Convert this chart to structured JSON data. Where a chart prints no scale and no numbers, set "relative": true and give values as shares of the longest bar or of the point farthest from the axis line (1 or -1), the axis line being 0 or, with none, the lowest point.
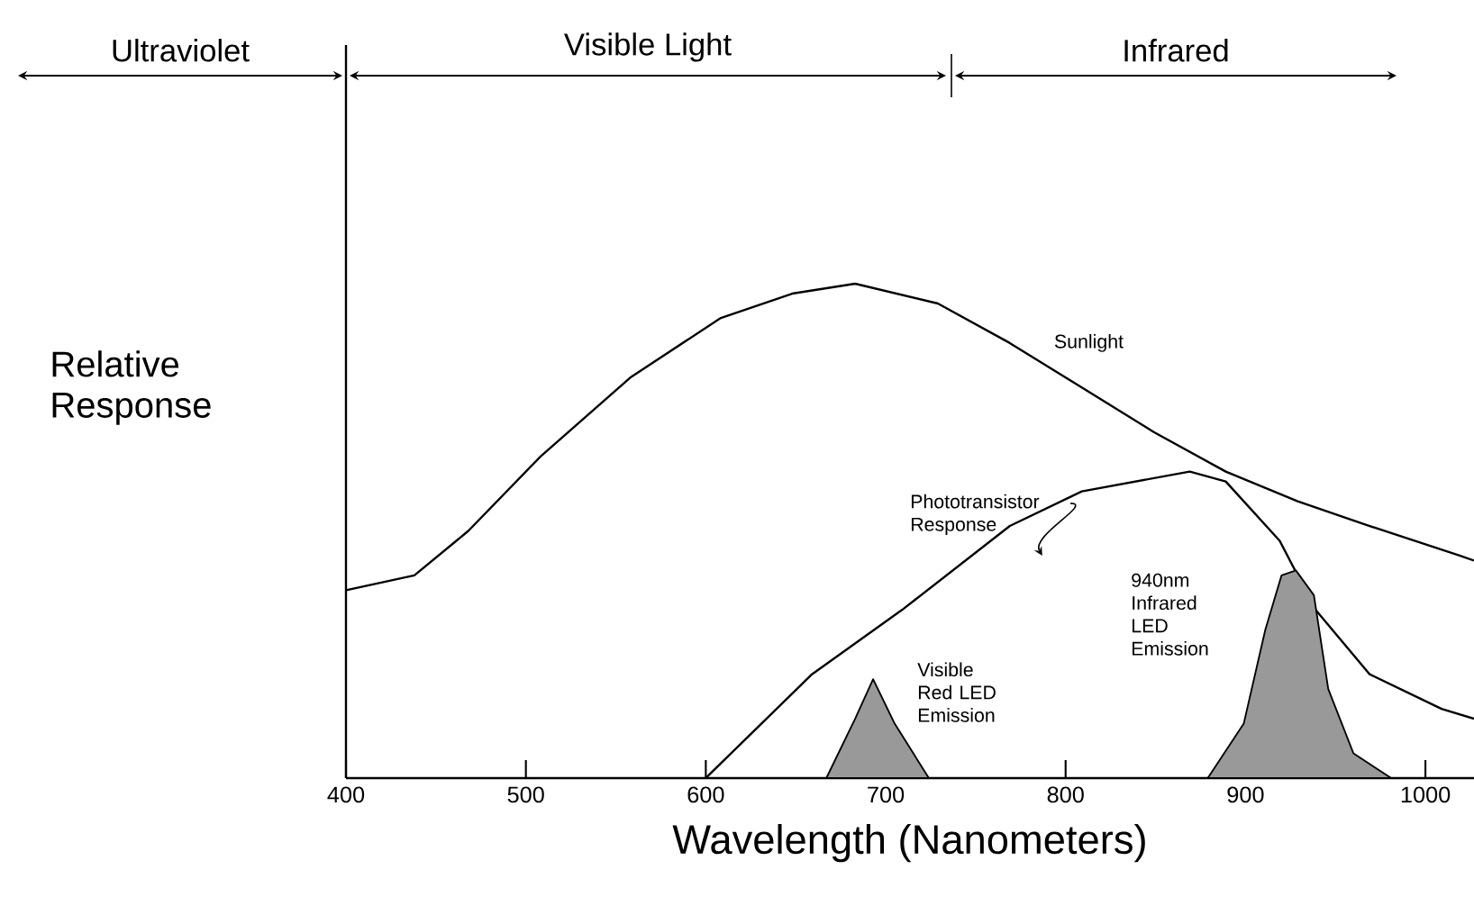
{
  "chart_data": {
    "type": "line",
    "relative": true,
    "xlabel": "Wavelength (Nanometers)",
    "ylabel": "Relative Response",
    "xlim": [
      400,
      1027
    ],
    "xticks": [
      400,
      500,
      600,
      700,
      800,
      900,
      1000
    ],
    "grid": false,
    "annotations": [
      "Ultraviolet",
      "Visible Light",
      "Infrared"
    ],
    "series": [
      {
        "name": "Sunlight",
        "color": "#000000",
        "x": [
          400,
          438,
          468,
          508,
          558,
          608,
          648,
          683,
          729,
          769,
          809,
          849,
          889,
          929,
          969,
          1019,
          1027
        ],
        "values": [
          0.38,
          0.41,
          0.5,
          0.65,
          0.81,
          0.93,
          0.98,
          1,
          0.96,
          0.88,
          0.79,
          0.7,
          0.62,
          0.56,
          0.51,
          0.45,
          0.44
        ]
      },
      {
        "name": "Phototransistor Response",
        "color": "#000000",
        "x": [
          600,
          659,
          709,
          769,
          809,
          869,
          889,
          919,
          939,
          969,
          1009,
          1027
        ],
        "values": [
          0,
          0.21,
          0.34,
          0.51,
          0.58,
          0.62,
          0.6,
          0.48,
          0.34,
          0.21,
          0.14,
          0.12
        ]
      },
      {
        "name": "Visible Red LED Emission",
        "type": "area",
        "color": "#000000",
        "x": [
          667,
          683,
          693,
          705,
          724
        ],
        "values": [
          0,
          0.12,
          0.2,
          0.11,
          0
        ]
      },
      {
        "name": "940nm Infrared LED Emission",
        "type": "area",
        "color": "#000000",
        "x": [
          879,
          899,
          911,
          920,
          928,
          938,
          946,
          960,
          981
        ],
        "values": [
          0,
          0.11,
          0.3,
          0.41,
          0.42,
          0.37,
          0.18,
          0.05,
          0
        ]
      }
    ]
  }
}
